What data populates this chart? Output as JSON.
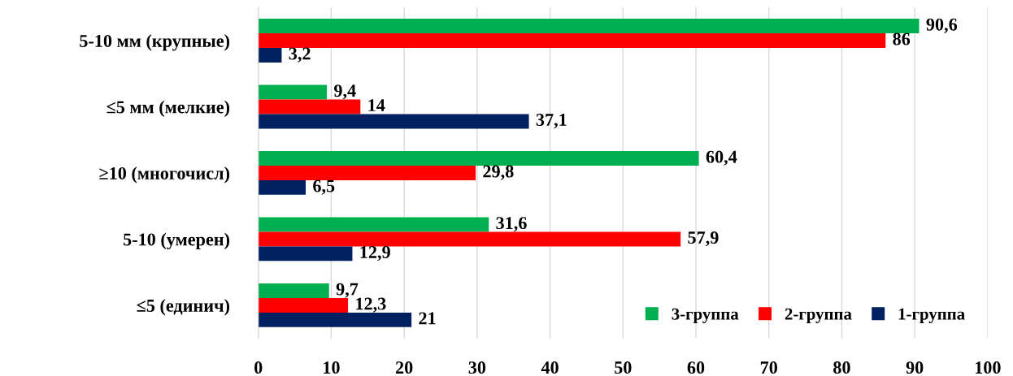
{
  "chart_data": {
    "type": "bar",
    "orientation": "horizontal",
    "categories": [
      "5-10 мм (крупные)",
      "≤5 мм (мелкие)",
      "≥10 (многочисл)",
      "5-10 (умерен)",
      "≤5 (единич)"
    ],
    "series": [
      {
        "name": "3-группа",
        "color": "#00b050",
        "values": [
          90.6,
          9.4,
          60.4,
          31.6,
          9.7
        ],
        "value_labels": [
          "90,6",
          "9,4",
          "60,4",
          "31,6",
          "9,7"
        ]
      },
      {
        "name": "2-группа",
        "color": "#ff0000",
        "values": [
          86,
          14,
          29.8,
          57.9,
          12.3
        ],
        "value_labels": [
          "86",
          "14",
          "29,8",
          "57,9",
          "12,3"
        ]
      },
      {
        "name": "1-группа",
        "color": "#002060",
        "values": [
          3.2,
          37.1,
          6.5,
          12.9,
          21
        ],
        "value_labels": [
          "3,2",
          "37,1",
          "6,5",
          "12,9",
          "21"
        ]
      }
    ],
    "xlim": [
      0,
      100
    ],
    "xticks": [
      0,
      10,
      20,
      30,
      40,
      50,
      60,
      70,
      80,
      90,
      100
    ],
    "grid": "x",
    "legend": "bottom right"
  }
}
